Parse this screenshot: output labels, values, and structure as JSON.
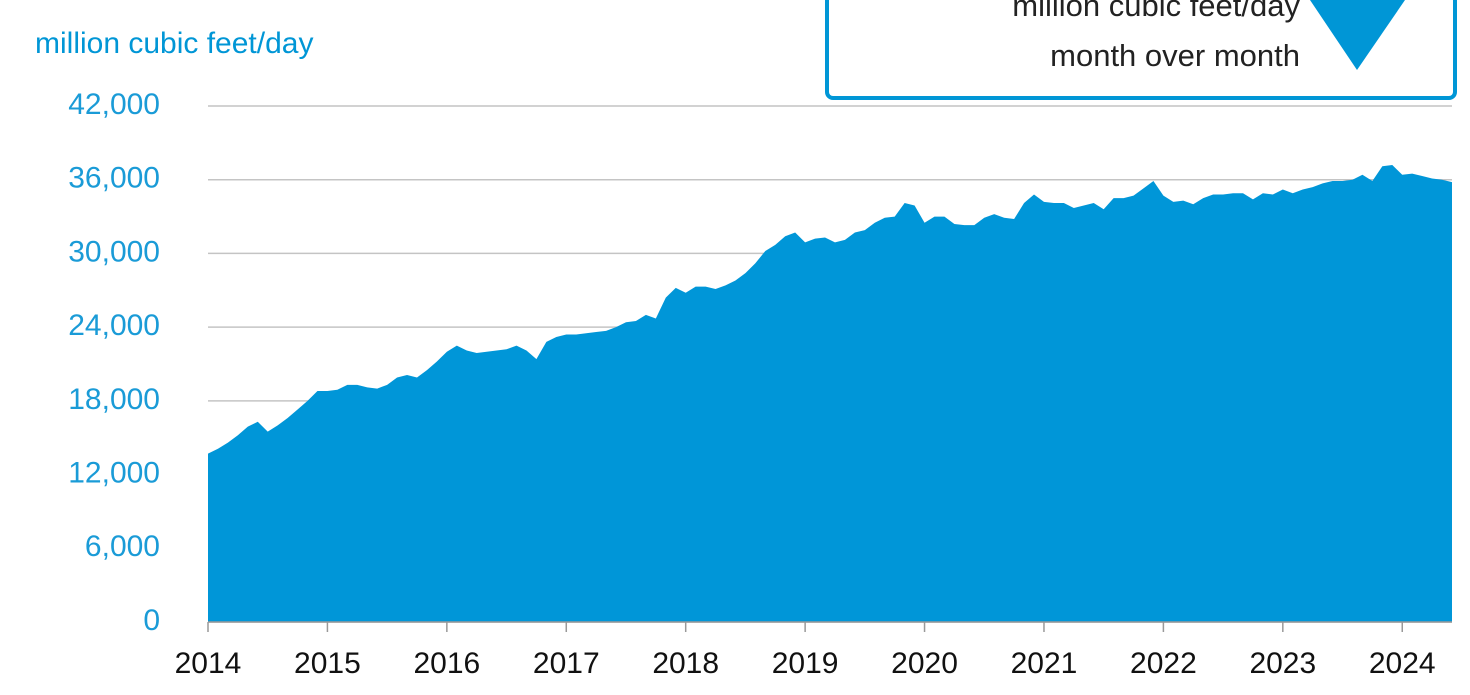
{
  "chart_data": {
    "type": "area",
    "subtitle": "million cubic feet/day",
    "annotation": [
      "million cubic feet/day",
      "month over month"
    ],
    "color": "#0096d8",
    "grid": true,
    "ylim": [
      0,
      42000
    ],
    "yticks": [
      {
        "value": 0,
        "label": "0"
      },
      {
        "value": 6000,
        "label": "6,000"
      },
      {
        "value": 12000,
        "label": "12,000"
      },
      {
        "value": 18000,
        "label": "18,000"
      },
      {
        "value": 24000,
        "label": "24,000"
      },
      {
        "value": 30000,
        "label": "30,000"
      },
      {
        "value": 36000,
        "label": "36,000"
      },
      {
        "value": 42000,
        "label": "42,000"
      }
    ],
    "categories": [
      "2014",
      null,
      null,
      null,
      null,
      null,
      null,
      null,
      null,
      null,
      null,
      null,
      "2015",
      null,
      null,
      null,
      null,
      null,
      null,
      null,
      null,
      null,
      null,
      null,
      "2016",
      null,
      null,
      null,
      null,
      null,
      null,
      null,
      null,
      null,
      null,
      null,
      "2017",
      null,
      null,
      null,
      null,
      null,
      null,
      null,
      null,
      null,
      null,
      null,
      "2018",
      null,
      null,
      null,
      null,
      null,
      null,
      null,
      null,
      null,
      null,
      null,
      "2019",
      null,
      null,
      null,
      null,
      null,
      null,
      null,
      null,
      null,
      null,
      null,
      "2020",
      null,
      null,
      null,
      null,
      null,
      null,
      null,
      null,
      null,
      null,
      null,
      "2021",
      null,
      null,
      null,
      null,
      null,
      null,
      null,
      null,
      null,
      null,
      null,
      "2022",
      null,
      null,
      null,
      null,
      null,
      null,
      null,
      null,
      null,
      null,
      null,
      "2023",
      null,
      null,
      null,
      null,
      null,
      null,
      null,
      null,
      null,
      null,
      null,
      "2024",
      null,
      null,
      null,
      null,
      null
    ],
    "values": [
      13700,
      14100,
      14600,
      15200,
      15900,
      16300,
      15500,
      16000,
      16600,
      17300,
      18000,
      18800,
      18800,
      18900,
      19300,
      19300,
      19100,
      19000,
      19300,
      19900,
      20100,
      19900,
      20500,
      21200,
      22000,
      22500,
      22100,
      21900,
      22000,
      22100,
      22200,
      22500,
      22100,
      21400,
      22800,
      23200,
      23400,
      23400,
      23500,
      23600,
      23700,
      24000,
      24400,
      24500,
      25000,
      24700,
      26400,
      27200,
      26800,
      27300,
      27300,
      27100,
      27400,
      27800,
      28400,
      29200,
      30200,
      30700,
      31400,
      31700,
      30900,
      31200,
      31300,
      30900,
      31100,
      31700,
      31900,
      32500,
      32900,
      33000,
      34100,
      33900,
      32500,
      33000,
      33000,
      32400,
      32300,
      32300,
      32900,
      33200,
      32900,
      32800,
      34100,
      34800,
      34200,
      34100,
      34100,
      33700,
      33900,
      34100,
      33600,
      34500,
      34500,
      34700,
      35300,
      35900,
      34700,
      34200,
      34300,
      34000,
      34500,
      34800,
      34800,
      34900,
      34900,
      34400,
      34900,
      34800,
      35200,
      34900,
      35200,
      35400,
      35700,
      35900,
      35900,
      36000,
      36400,
      35900,
      37100,
      37200,
      36400,
      36500,
      36300,
      36100,
      36000,
      35800
    ]
  }
}
